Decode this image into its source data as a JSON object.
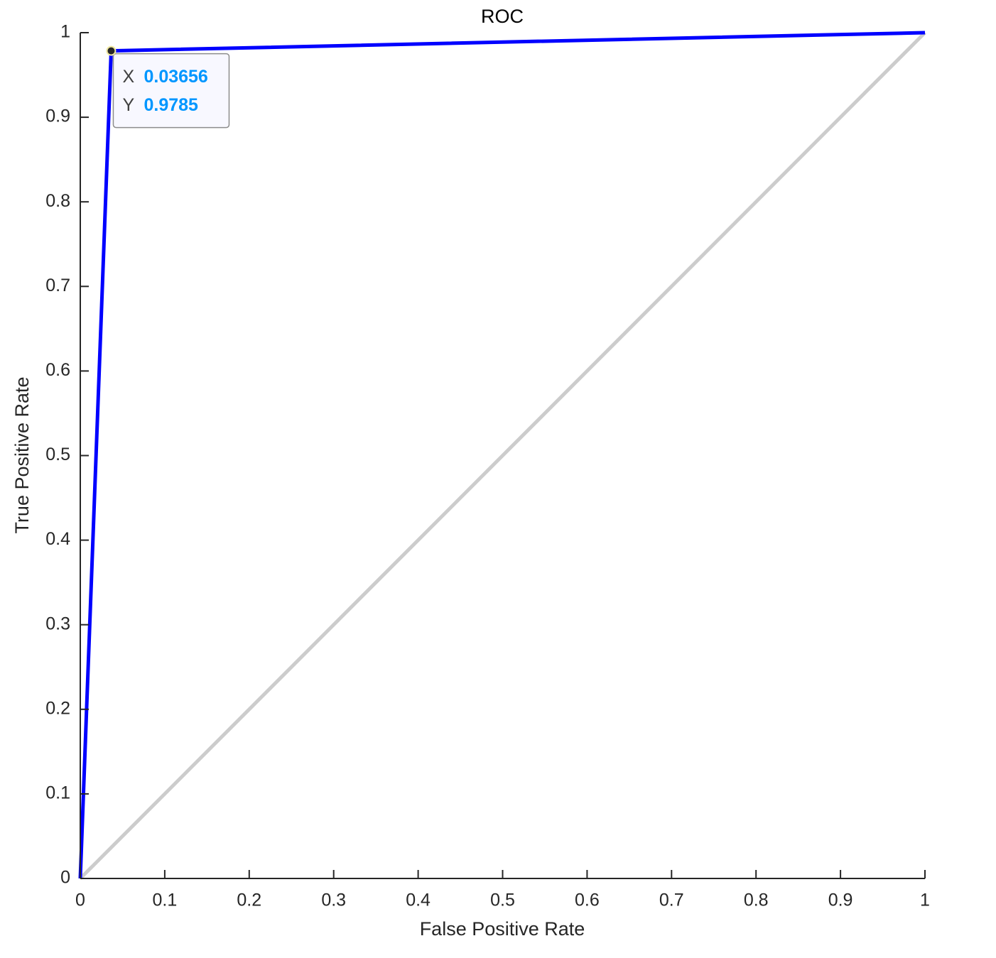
{
  "chart_data": {
    "type": "line",
    "title": "ROC",
    "x_label": "False Positive Rate",
    "y_label": "True Positive Rate",
    "series": [
      {
        "color": "#0000ff",
        "x": [
          0,
          0.03656,
          1
        ],
        "values": [
          0,
          0.9785,
          1
        ]
      },
      {
        "color": "#cccccc",
        "x": [
          0,
          1
        ],
        "values": [
          0,
          1
        ]
      }
    ],
    "xlim": [
      0,
      1
    ],
    "ylim": [
      0,
      1
    ],
    "xticks": [
      0,
      0.1,
      0.2,
      0.3,
      0.4,
      0.5,
      0.6,
      0.7,
      0.8,
      0.9,
      1
    ],
    "yticks": [
      0,
      0.1,
      0.2,
      0.3,
      0.4,
      0.5,
      0.6,
      0.7,
      0.8,
      0.9,
      1
    ],
    "grid": false,
    "datatip": {
      "series": 0,
      "index": 1,
      "x_label": "X",
      "y_label": "Y"
    }
  }
}
